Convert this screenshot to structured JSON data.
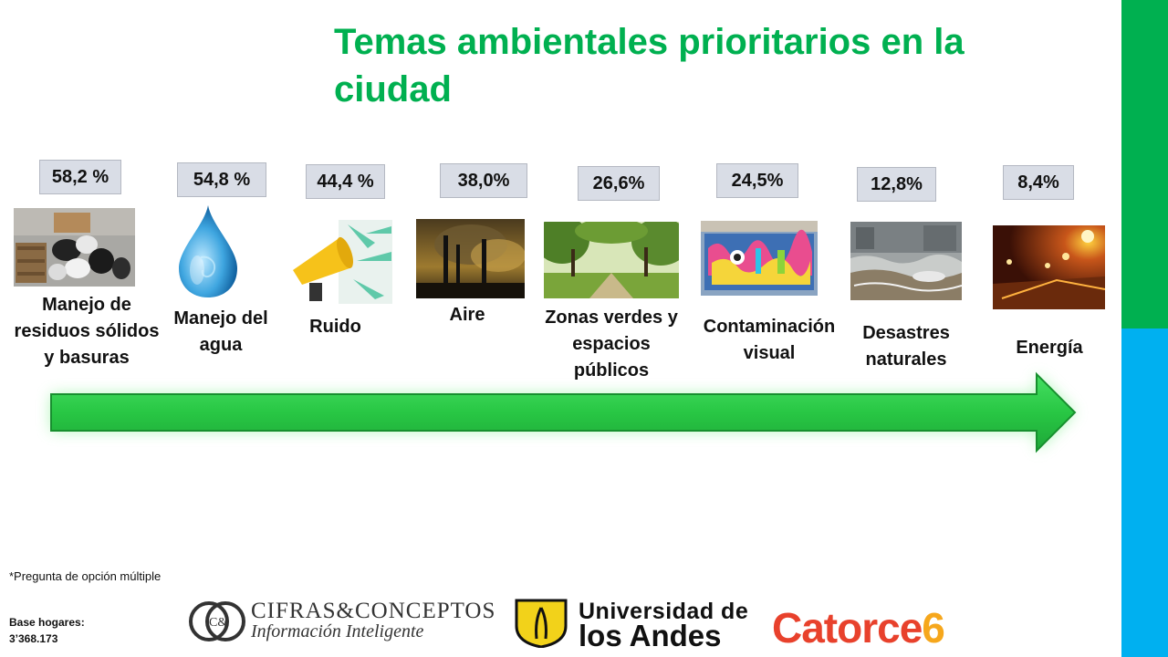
{
  "title": "Temas ambientales prioritarios en la ciudad",
  "topics": [
    {
      "label": "Manejo de residuos sólidos y basuras",
      "percent": "58,2 %",
      "icon": "garbage-photo"
    },
    {
      "label": "Manejo del agua",
      "percent": "54,8 %",
      "icon": "water-drop-icon"
    },
    {
      "label": "Ruido",
      "percent": "44,4 %",
      "icon": "megaphone-icon"
    },
    {
      "label": "Aire",
      "percent": "38,0%",
      "icon": "air-pollution-photo"
    },
    {
      "label": "Zonas verdes y espacios públicos",
      "percent": "26,6%",
      "icon": "park-photo"
    },
    {
      "label": "Contaminación visual",
      "percent": "24,5%",
      "icon": "graffiti-photo"
    },
    {
      "label": "Desastres naturales",
      "percent": "12,8%",
      "icon": "flood-photo"
    },
    {
      "label": "Energía",
      "percent": "8,4%",
      "icon": "city-lights-photo"
    }
  ],
  "note": "*Pregunta de opción múltiple",
  "base_label": "Base hogares:",
  "base_value": "3’368.173",
  "logos": {
    "cifras_main": "CIFRAS&CONCEPTOS",
    "cifras_sub": "Información Inteligente",
    "cifras_mark": "C&",
    "uandes_line1": "Universidad de",
    "uandes_line2": "los Andes",
    "catorce": "Catorce",
    "catorce_num": "6"
  },
  "colors": {
    "accent_green": "#00b050",
    "accent_blue": "#00b0f0",
    "arrow_green": "#2fcf4f",
    "catorce_red": "#e8412c",
    "catorce_orange": "#f6a71c"
  }
}
